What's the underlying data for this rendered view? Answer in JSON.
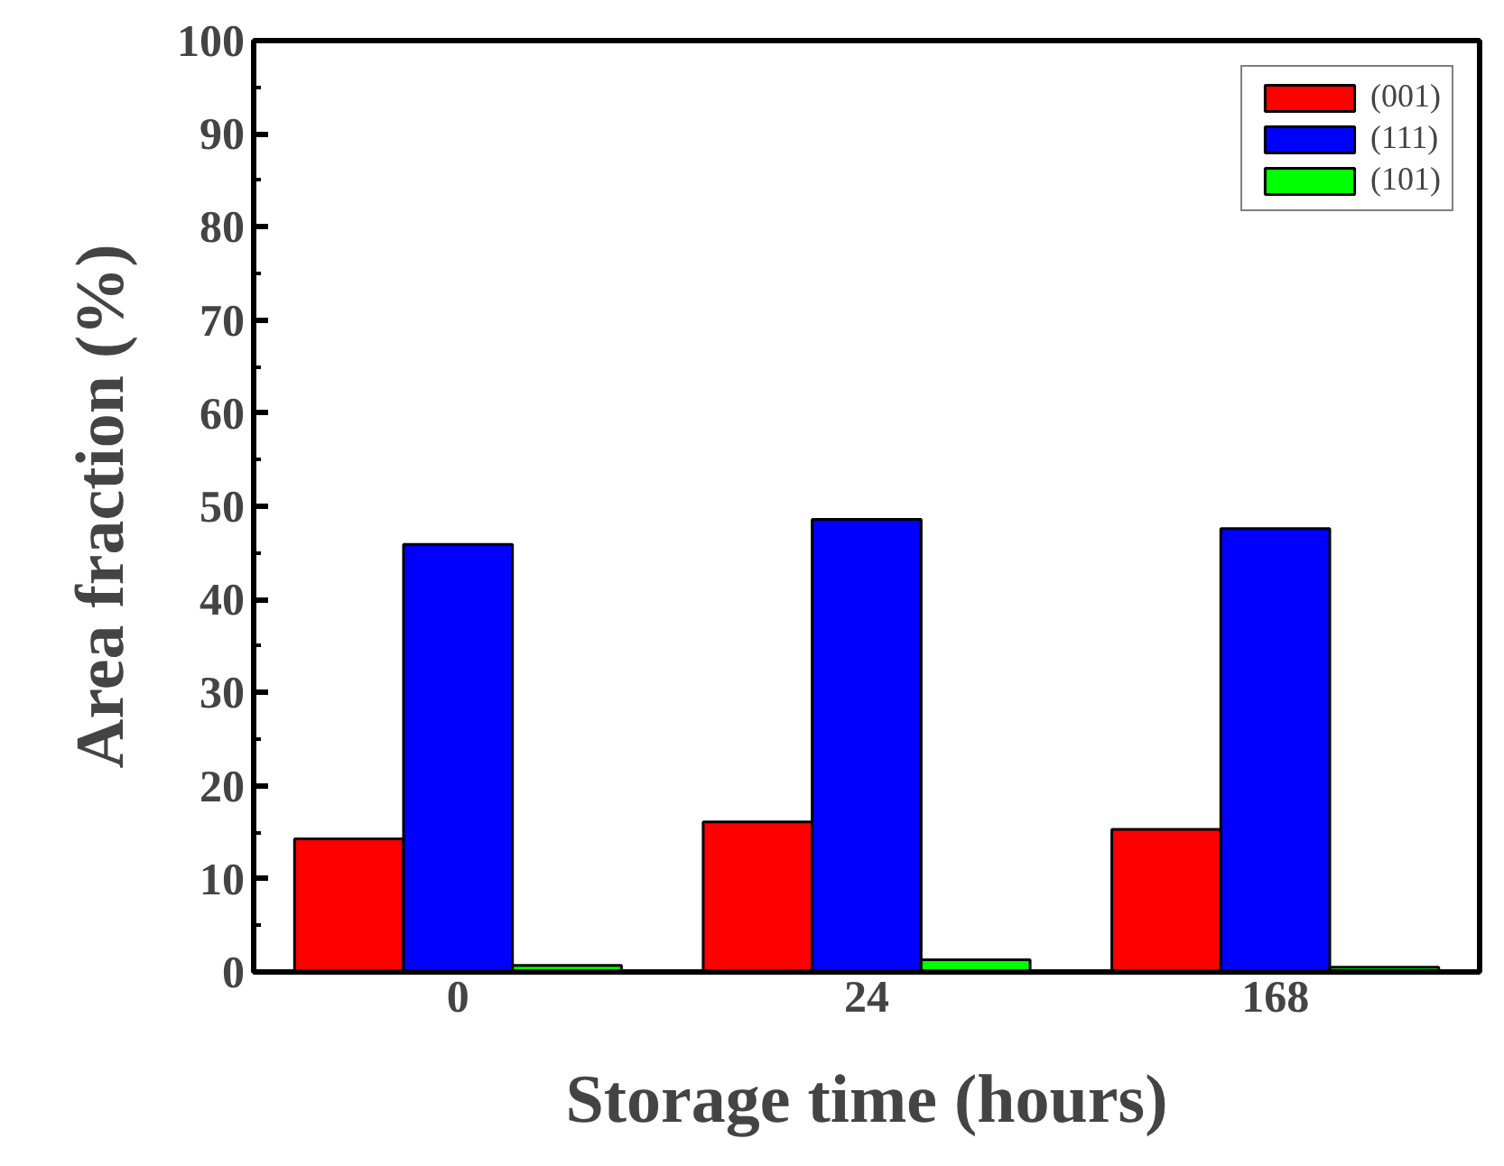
{
  "chart_data": {
    "type": "bar",
    "xlabel": "Storage time (hours)",
    "ylabel": "Area fraction (%)",
    "categories": [
      "0",
      "24",
      "168"
    ],
    "series": [
      {
        "name": "(001)",
        "color": "#ff0000",
        "values": [
          14.3,
          16.1,
          15.3
        ]
      },
      {
        "name": "(111)",
        "color": "#0000ff",
        "values": [
          45.9,
          48.6,
          47.6
        ]
      },
      {
        "name": "(101)",
        "color": "#00ff00",
        "values": [
          0.7,
          1.3,
          0.5
        ]
      }
    ],
    "ylim": [
      0,
      100
    ],
    "yticks": [
      0,
      10,
      20,
      30,
      40,
      50,
      60,
      70,
      80,
      90,
      100
    ],
    "grid": false,
    "legend": "top right"
  }
}
